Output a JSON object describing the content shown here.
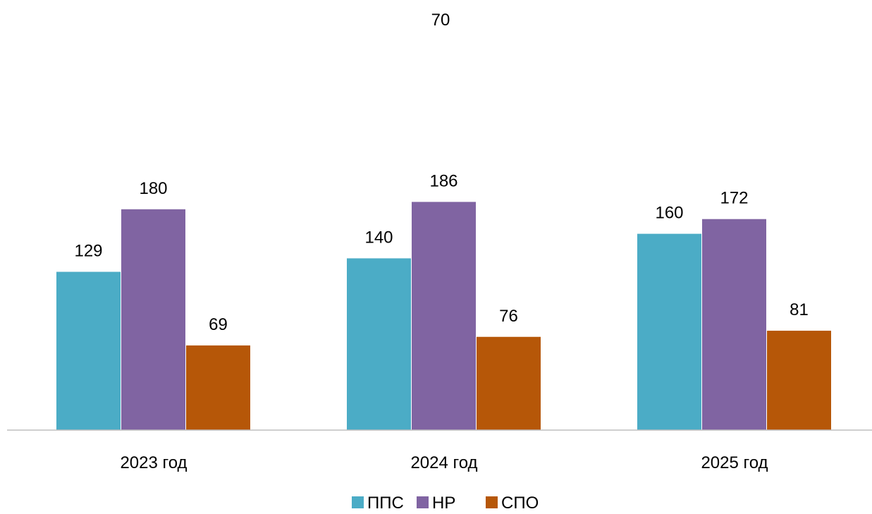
{
  "chart_data": {
    "type": "bar",
    "top_label": "70",
    "categories": [
      "2023 год",
      "2024 год",
      "2025 год"
    ],
    "series": [
      {
        "name": "ППС",
        "values": [
          129,
          140,
          160
        ],
        "color": "#4BACC6"
      },
      {
        "name": "НР",
        "values": [
          180,
          186,
          172
        ],
        "color": "#8064A2"
      },
      {
        "name": "СПО",
        "values": [
          69,
          76,
          81
        ],
        "color": "#B65708"
      }
    ],
    "ylim": [
      0,
      200
    ],
    "grid": false,
    "legend": "bottom"
  }
}
